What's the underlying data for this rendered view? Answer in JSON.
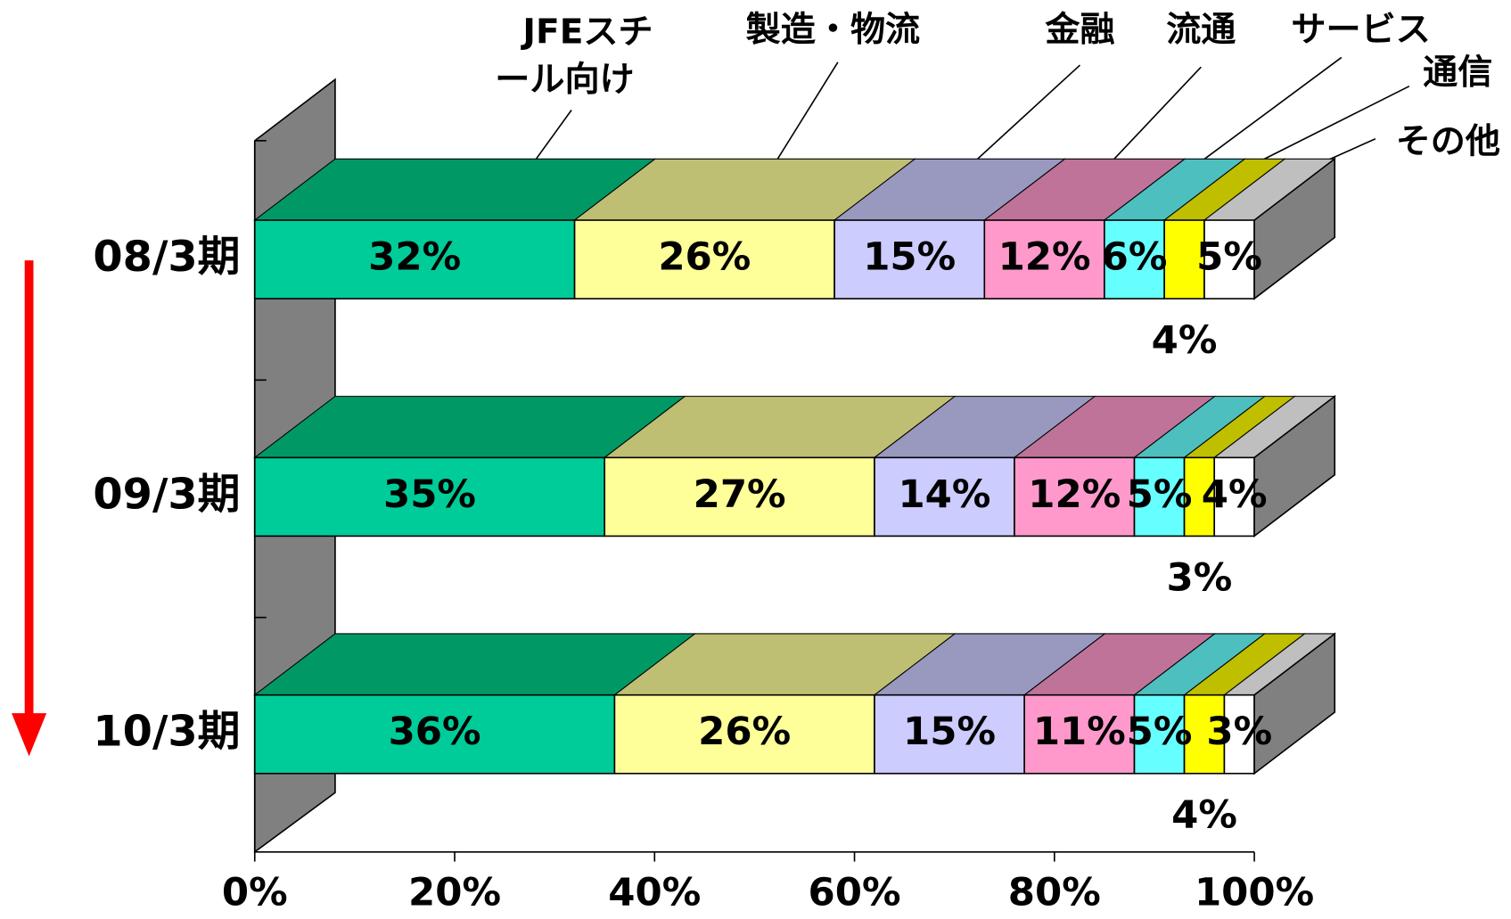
{
  "chart_data": {
    "type": "bar3d_stacked_horizontal",
    "categories": [
      "08/3期",
      "09/3期",
      "10/3期"
    ],
    "series": [
      {
        "name": "JFEスチール向け",
        "color": "#00CC99",
        "top_color": "#009966",
        "values": [
          32,
          35,
          36
        ],
        "value_labels": [
          "32%",
          "35%",
          "36%"
        ]
      },
      {
        "name": "製造・物流",
        "color": "#FFFF99",
        "top_color": "#BFBF73",
        "values": [
          26,
          27,
          26
        ],
        "value_labels": [
          "26%",
          "27%",
          "26%"
        ]
      },
      {
        "name": "金融",
        "color": "#CCCCFF",
        "top_color": "#9999BF",
        "values": [
          15,
          14,
          15
        ],
        "value_labels": [
          "15%",
          "14%",
          "15%"
        ]
      },
      {
        "name": "流通",
        "color": "#FF99CC",
        "top_color": "#BF7399",
        "values": [
          12,
          12,
          11
        ],
        "value_labels": [
          "12%",
          "12%",
          "11%"
        ]
      },
      {
        "name": "サービス",
        "color": "#66FFFF",
        "top_color": "#4DBFBF",
        "values": [
          6,
          5,
          5
        ],
        "value_labels": [
          "6%",
          "5%",
          "5%"
        ]
      },
      {
        "name": "通信",
        "color": "#FFFF00",
        "top_color": "#BFBF00",
        "values": [
          4,
          3,
          4
        ],
        "value_labels": [
          "4%",
          "3%",
          "4%"
        ]
      },
      {
        "name": "その他",
        "color": "#FFFFFF",
        "top_color": "#BFBFBF",
        "values": [
          5,
          4,
          3
        ],
        "value_labels": [
          "5%",
          "4%",
          "3%"
        ]
      }
    ],
    "xlim": [
      0,
      100
    ],
    "xticks": [
      {
        "value": 0,
        "label": "0%"
      },
      {
        "value": 20,
        "label": "20%"
      },
      {
        "value": 40,
        "label": "40%"
      },
      {
        "value": 60,
        "label": "60%"
      },
      {
        "value": 80,
        "label": "80%"
      },
      {
        "value": 100,
        "label": "100%"
      }
    ]
  }
}
